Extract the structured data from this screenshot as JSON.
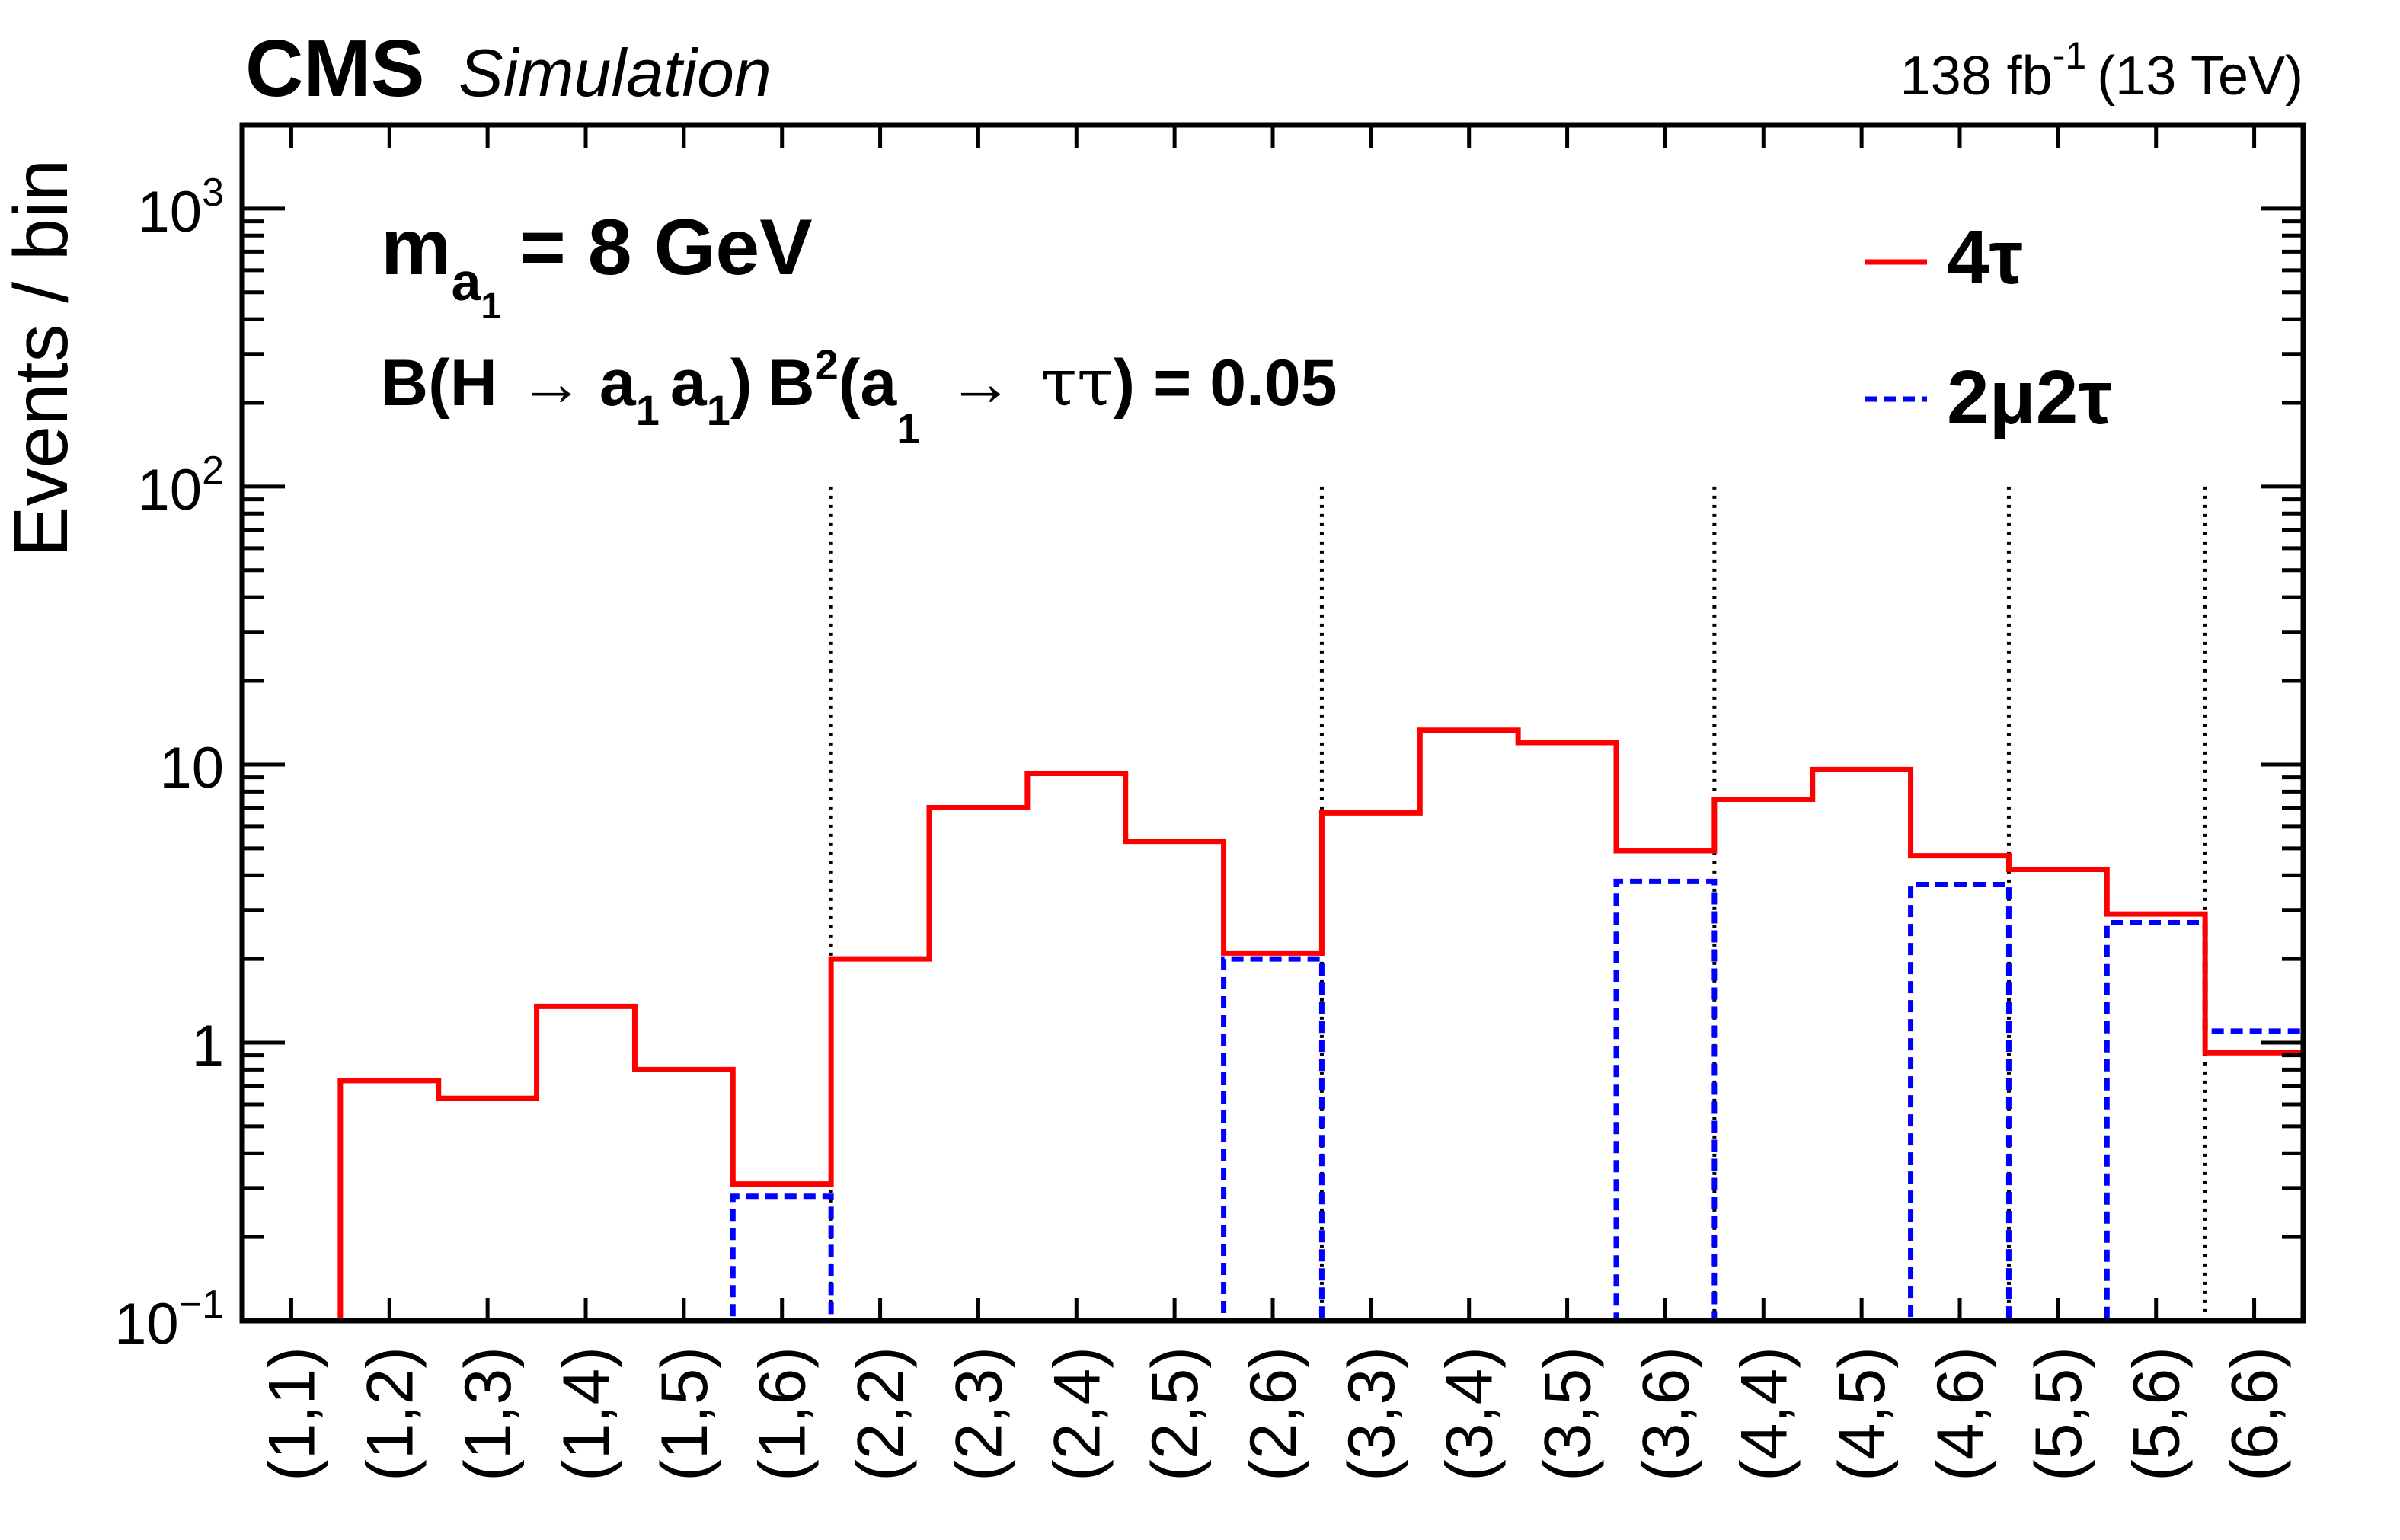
{
  "header": {
    "experiment": "CMS",
    "tag": "Simulation",
    "lumi_value": "138 fb",
    "lumi_exp": "-1",
    "lumi_energy": "(13 TeV)"
  },
  "annotations": {
    "mass_m": "m",
    "mass_sub_a": "a",
    "mass_sub_1": "1",
    "mass_value": "= 8 GeV",
    "br_part1": "B(H",
    "arrow": "→",
    "br_a": "a",
    "br_sub1": "1",
    "br_close": ")",
    "br_B": "B",
    "br_sup2": "2",
    "br_open_a": "(a",
    "br_tautau": "ττ",
    "br_value": ") = 0.05"
  },
  "legend": {
    "entries": [
      "4τ",
      "2μ2τ"
    ],
    "placement": "top-right"
  },
  "colors": {
    "series_4tau": "#ff0000",
    "series_2mu2tau": "#0000ff",
    "divider": "#000000",
    "axes": "#000000"
  },
  "chart_data": {
    "type": "histogram-step",
    "ylabel": "Events / bin",
    "yscale": "log",
    "ylim": [
      0.1,
      2000
    ],
    "y_tick_labels": [
      "10^−1",
      "1",
      "10",
      "10^2",
      "10^3"
    ],
    "categories": [
      "(1,1)",
      "(1,2)",
      "(1,3)",
      "(1,4)",
      "(1,5)",
      "(1,6)",
      "(2,2)",
      "(2,3)",
      "(2,4)",
      "(2,5)",
      "(2,6)",
      "(3,3)",
      "(3,4)",
      "(3,5)",
      "(3,6)",
      "(4,4)",
      "(4,5)",
      "(4,6)",
      "(5,5)",
      "(5,6)",
      "(6,6)"
    ],
    "group_boundaries_after": [
      "(1,6)",
      "(2,6)",
      "(3,6)",
      "(4,6)",
      "(5,6)"
    ],
    "series": [
      {
        "name": "4τ",
        "line": "solid",
        "values": [
          0.1,
          0.73,
          0.63,
          1.35,
          0.8,
          0.31,
          2.0,
          7.0,
          9.3,
          5.3,
          2.1,
          6.7,
          13.3,
          12.0,
          4.9,
          7.5,
          9.6,
          4.7,
          4.2,
          2.9,
          0.92
        ]
      },
      {
        "name": "2μ2τ",
        "line": "dashed",
        "values": [
          0.1,
          0.1,
          0.1,
          0.1,
          0.1,
          0.28,
          0.1,
          0.1,
          0.1,
          0.1,
          2.0,
          0.1,
          0.1,
          0.1,
          3.8,
          0.1,
          0.1,
          3.7,
          0.1,
          2.7,
          1.1
        ]
      }
    ]
  }
}
